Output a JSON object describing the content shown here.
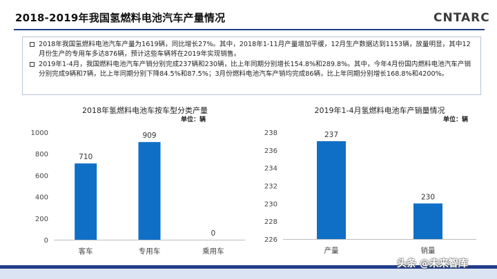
{
  "page": {
    "title": "2018-2019年我国氢燃料电池汽车产量情况",
    "logo": "CNTARC",
    "watermark": "头条 @未来智库"
  },
  "bullets": [
    "2018年我国氢燃料电池汽车产量为1619辆，同比增长27%。其中，2018年1-11月产量增加平缓，12月生产数据达到1153辆，放量明显，其中12月份生产的专用车多达876辆，预计这些车辆将在2019年实现销售。",
    "2019年1-4月，我国燃料电池汽车产销分别完成237辆和230辆，比上年同期分别增长154.8%和289.8%。其中，今年4月份国内燃料电池汽车产销分别完成9辆和7辆，比上年同期分别下降84.5%和87.5%；3月份燃料电池汽车产销均完成86辆，比上年同期分别增长168.8%和4200%。"
  ],
  "chart_data": [
    {
      "type": "bar",
      "title": "2018年氢燃料电池车按车型分类产量",
      "unit": "单位：辆",
      "categories": [
        "客车",
        "专用车",
        "乘用车"
      ],
      "values": [
        710,
        909,
        0
      ],
      "ylim": [
        0,
        1000
      ],
      "yticks": [
        0,
        200,
        400,
        600,
        800,
        1000
      ],
      "bar_color": "#0f6fc6",
      "grid": false
    },
    {
      "type": "bar",
      "title": "2019年1-4月氢燃料电池车产销量情况",
      "unit": "单位：辆",
      "categories": [
        "产量",
        "销量"
      ],
      "values": [
        237,
        230
      ],
      "ylim": [
        226,
        238
      ],
      "yticks": [
        226,
        228,
        230,
        232,
        234,
        236,
        238
      ],
      "bar_color": "#0f6fc6",
      "grid": false
    }
  ]
}
